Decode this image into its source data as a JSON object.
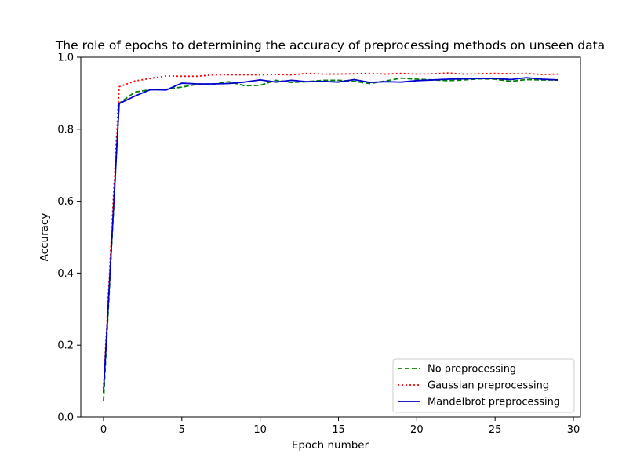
{
  "chart_data": {
    "type": "line",
    "title": "The role of epochs to determining the accuracy of preprocessing methods on unseen data",
    "xlabel": "Epoch number",
    "ylabel": "Accuracy",
    "xlim": [
      -1.45,
      30.45
    ],
    "ylim": [
      0.0,
      1.0
    ],
    "xticks": [
      0,
      5,
      10,
      15,
      20,
      25,
      30
    ],
    "yticks": [
      0.0,
      0.2,
      0.4,
      0.6,
      0.8,
      1.0
    ],
    "xtick_labels": [
      "0",
      "5",
      "10",
      "15",
      "20",
      "25",
      "30"
    ],
    "ytick_labels": [
      "0.0",
      "0.2",
      "0.4",
      "0.6",
      "0.8",
      "1.0"
    ],
    "grid": false,
    "legend_position": "lower-right",
    "x": [
      0,
      1,
      2,
      3,
      4,
      5,
      6,
      7,
      8,
      9,
      10,
      11,
      12,
      13,
      14,
      15,
      16,
      17,
      18,
      19,
      20,
      21,
      22,
      23,
      24,
      25,
      26,
      27,
      28,
      29
    ],
    "series": [
      {
        "name": "No preprocessing",
        "color": "#008000",
        "dash": "dashed",
        "values": [
          0.045,
          0.872,
          0.903,
          0.91,
          0.911,
          0.917,
          0.925,
          0.925,
          0.932,
          0.921,
          0.922,
          0.936,
          0.93,
          0.932,
          0.936,
          0.936,
          0.933,
          0.927,
          0.934,
          0.942,
          0.939,
          0.937,
          0.935,
          0.937,
          0.94,
          0.939,
          0.933,
          0.938,
          0.937,
          0.937
        ]
      },
      {
        "name": "Gaussian preprocessing",
        "color": "#ff0000",
        "dash": "dotted",
        "values": [
          0.08,
          0.918,
          0.934,
          0.941,
          0.948,
          0.947,
          0.947,
          0.951,
          0.951,
          0.951,
          0.951,
          0.952,
          0.951,
          0.955,
          0.953,
          0.953,
          0.954,
          0.955,
          0.953,
          0.955,
          0.953,
          0.954,
          0.956,
          0.953,
          0.954,
          0.955,
          0.954,
          0.955,
          0.952,
          0.953
        ]
      },
      {
        "name": "Mandelbrot preprocessing",
        "color": "#0000cc",
        "dash": "solid",
        "values": [
          0.068,
          0.871,
          0.892,
          0.91,
          0.909,
          0.928,
          0.926,
          0.926,
          0.927,
          0.931,
          0.937,
          0.931,
          0.936,
          0.932,
          0.933,
          0.931,
          0.938,
          0.93,
          0.932,
          0.931,
          0.935,
          0.937,
          0.939,
          0.94,
          0.941,
          0.941,
          0.938,
          0.943,
          0.939,
          0.937
        ]
      }
    ]
  }
}
